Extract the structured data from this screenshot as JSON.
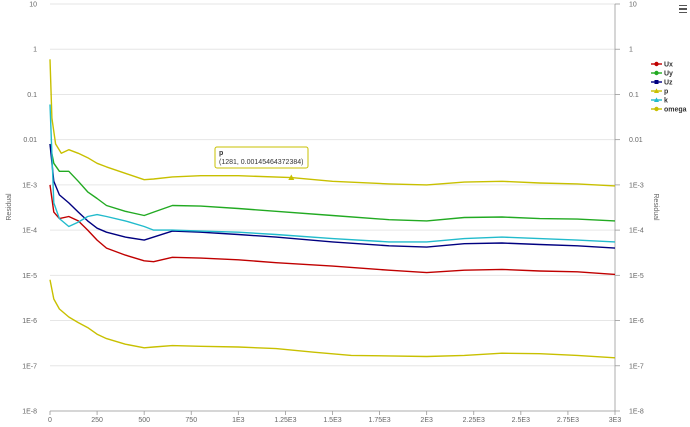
{
  "menu_icon": "hamburger-menu-icon",
  "tooltip": {
    "series": "p",
    "text": "(1281, 0.00145464372384)",
    "x": 1281,
    "y": 0.00145464372384
  },
  "chart_data": {
    "type": "line",
    "title": "",
    "xlabel": "",
    "ylabel": "Residual",
    "ylabel_right": "Residual",
    "y_scale": "log",
    "xlim": [
      0,
      3000
    ],
    "ylim": [
      1e-08,
      10
    ],
    "x_tick_labels": [
      "0",
      "250",
      "500",
      "750",
      "1E3",
      "1.25E3",
      "1.5E3",
      "1.75E3",
      "2E3",
      "2.25E3",
      "2.5E3",
      "2.75E3",
      "3E3"
    ],
    "x_tick_values": [
      0,
      250,
      500,
      750,
      1000,
      1250,
      1500,
      1750,
      2000,
      2250,
      2500,
      2750,
      3000
    ],
    "y_tick_labels": [
      "1E-8",
      "1E-7",
      "1E-6",
      "1E-5",
      "1E-4",
      "1E-3",
      "0.01",
      "0.1",
      "1",
      "10"
    ],
    "y_tick_values": [
      1e-08,
      1e-07,
      1e-06,
      1e-05,
      0.0001,
      0.001,
      0.01,
      0.1,
      1,
      10
    ],
    "y_tick_labels_right": [
      "1E-8",
      "1E-7",
      "1E-6",
      "1E-5",
      "1E-4",
      "1E-3",
      "0.01",
      "0.1",
      "1",
      "10"
    ],
    "grid": true,
    "legend_position": "right",
    "series": [
      {
        "name": "Ux",
        "color": "#c00000",
        "x": [
          0,
          20,
          50,
          100,
          150,
          200,
          250,
          300,
          400,
          500,
          550,
          650,
          800,
          1000,
          1200,
          1500,
          1800,
          2000,
          2200,
          2400,
          2600,
          2800,
          3000
        ],
        "y": [
          0.001,
          0.00025,
          0.00018,
          0.0002,
          0.00016,
          0.0001,
          6e-05,
          4e-05,
          2.8e-05,
          2.1e-05,
          2e-05,
          2.5e-05,
          2.4e-05,
          2.2e-05,
          1.9e-05,
          1.6e-05,
          1.3e-05,
          1.15e-05,
          1.3e-05,
          1.35e-05,
          1.25e-05,
          1.2e-05,
          1.05e-05
        ]
      },
      {
        "name": "Uy",
        "color": "#22aa22",
        "x": [
          0,
          20,
          50,
          100,
          150,
          200,
          250,
          300,
          400,
          500,
          550,
          650,
          800,
          1000,
          1200,
          1500,
          1800,
          2000,
          2200,
          2400,
          2600,
          2800,
          3000
        ],
        "y": [
          0.008,
          0.003,
          0.002,
          0.002,
          0.0012,
          0.0007,
          0.0005,
          0.00035,
          0.00026,
          0.00021,
          0.00025,
          0.00035,
          0.00034,
          0.0003,
          0.00026,
          0.00021,
          0.00017,
          0.00016,
          0.00019,
          0.000195,
          0.00018,
          0.000175,
          0.00016
        ]
      },
      {
        "name": "Uz",
        "color": "#000080",
        "x": [
          0,
          20,
          50,
          100,
          150,
          200,
          250,
          300,
          400,
          500,
          550,
          650,
          800,
          1000,
          1200,
          1500,
          1800,
          2000,
          2200,
          2400,
          2600,
          2800,
          3000
        ],
        "y": [
          0.008,
          0.0012,
          0.0006,
          0.0004,
          0.00025,
          0.00016,
          0.00011,
          9e-05,
          7e-05,
          6e-05,
          7e-05,
          9.5e-05,
          9e-05,
          8e-05,
          7e-05,
          5.5e-05,
          4.5e-05,
          4.2e-05,
          5e-05,
          5.2e-05,
          4.8e-05,
          4.5e-05,
          4e-05
        ]
      },
      {
        "name": "p",
        "color": "#c8c000",
        "x": [
          0,
          10,
          30,
          60,
          100,
          150,
          200,
          250,
          300,
          400,
          500,
          550,
          650,
          800,
          1000,
          1281,
          1500,
          1800,
          2000,
          2200,
          2400,
          2600,
          2800,
          3000
        ],
        "y": [
          0.6,
          0.03,
          0.008,
          0.005,
          0.006,
          0.005,
          0.004,
          0.003,
          0.0025,
          0.0018,
          0.0013,
          0.00135,
          0.0015,
          0.0016,
          0.0016,
          0.00145,
          0.0012,
          0.00105,
          0.001,
          0.00115,
          0.0012,
          0.0011,
          0.00105,
          0.00095
        ]
      },
      {
        "name": "k",
        "color": "#22bbcc",
        "x": [
          0,
          20,
          50,
          100,
          150,
          200,
          250,
          300,
          400,
          500,
          550,
          650,
          800,
          1000,
          1200,
          1500,
          1800,
          2000,
          2200,
          2400,
          2600,
          2800,
          3000
        ],
        "y": [
          0.06,
          0.0004,
          0.00018,
          0.00012,
          0.00015,
          0.0002,
          0.00022,
          0.0002,
          0.00016,
          0.00012,
          0.0001,
          0.0001,
          9.5e-05,
          9e-05,
          8e-05,
          6.5e-05,
          5.5e-05,
          5.5e-05,
          6.5e-05,
          7e-05,
          6.5e-05,
          6e-05,
          5.5e-05
        ]
      },
      {
        "name": "omega",
        "color": "#c8c000",
        "x": [
          0,
          20,
          50,
          100,
          150,
          200,
          250,
          300,
          400,
          500,
          550,
          650,
          800,
          1000,
          1200,
          1400,
          1600,
          1800,
          2000,
          2200,
          2400,
          2600,
          2800,
          3000
        ],
        "y": [
          8e-06,
          3e-06,
          1.8e-06,
          1.2e-06,
          9e-07,
          7e-07,
          5e-07,
          4e-07,
          3e-07,
          2.5e-07,
          2.6e-07,
          2.8e-07,
          2.7e-07,
          2.6e-07,
          2.4e-07,
          2e-07,
          1.7e-07,
          1.65e-07,
          1.6e-07,
          1.7e-07,
          1.9e-07,
          1.85e-07,
          1.7e-07,
          1.5e-07
        ]
      }
    ]
  }
}
